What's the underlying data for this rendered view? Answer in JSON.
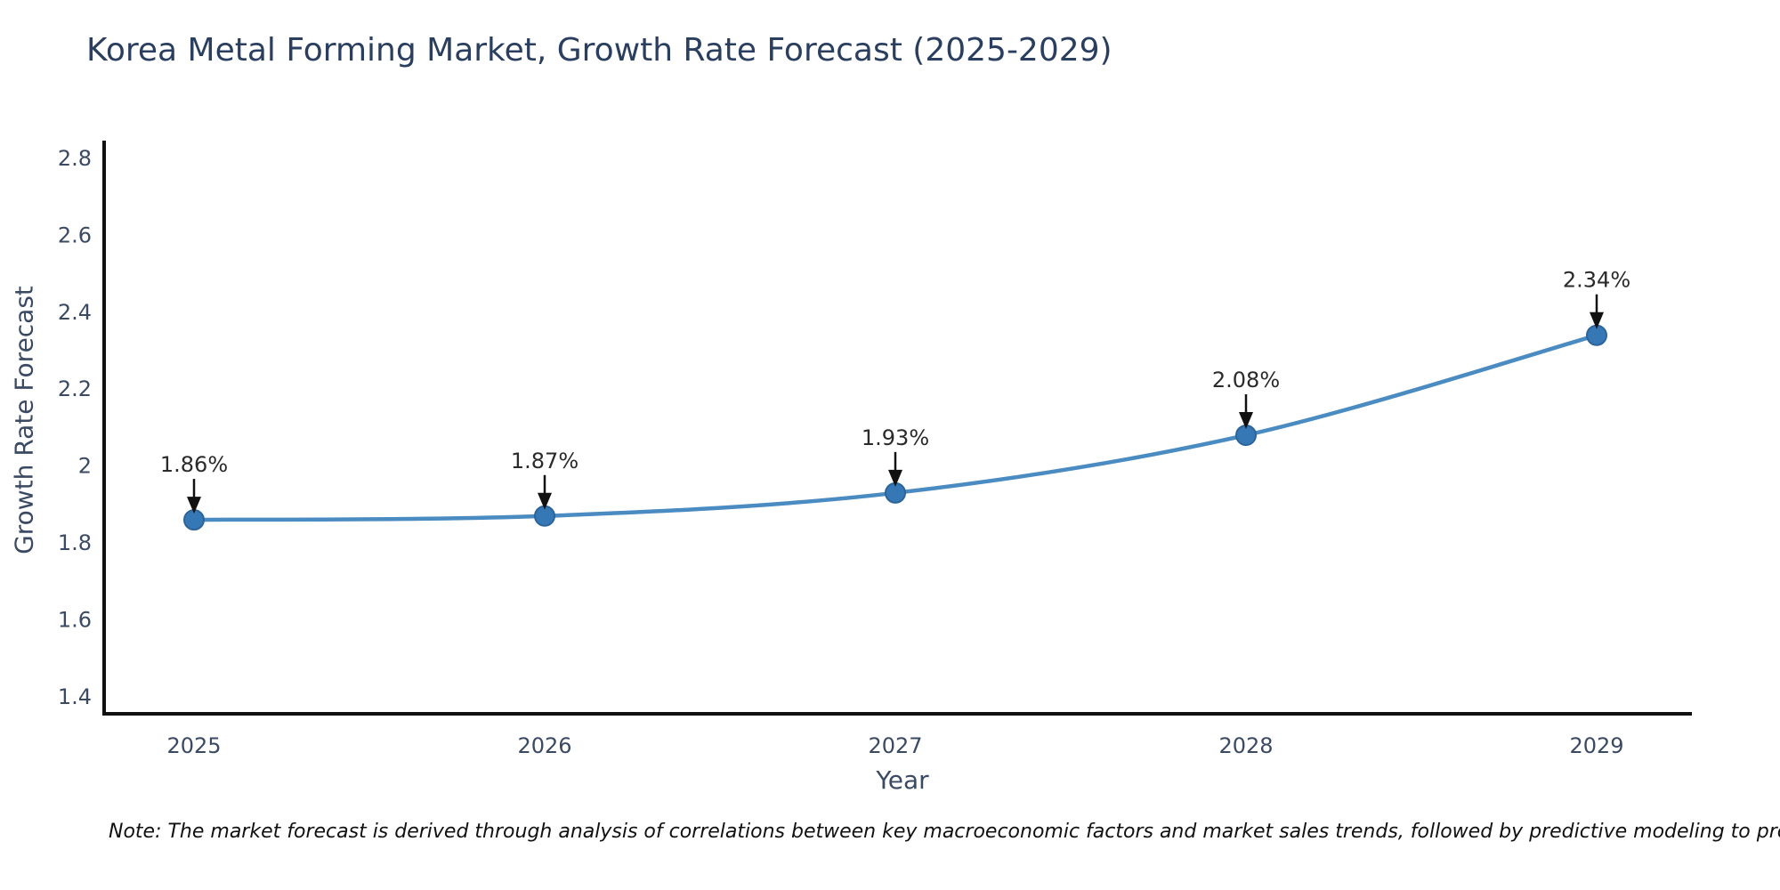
{
  "page": {
    "background": "#ffffff"
  },
  "chart_data": {
    "type": "line",
    "title": "Korea Metal Forming Market, Growth Rate Forecast (2025-2029)",
    "xlabel": "Year",
    "ylabel": "Growth Rate Forecast",
    "x": [
      "2025",
      "2026",
      "2027",
      "2028",
      "2029"
    ],
    "values": [
      1.86,
      1.87,
      1.93,
      2.08,
      2.34
    ],
    "point_labels": [
      "1.86%",
      "1.87%",
      "1.93%",
      "2.08%",
      "2.34%"
    ],
    "yticks": [
      "2.8",
      "2.6",
      "2.4",
      "2.2",
      "2",
      "1.8",
      "1.6",
      "1.4"
    ],
    "ytick_values": [
      2.8,
      2.6,
      2.4,
      2.2,
      2.0,
      1.8,
      1.6,
      1.4
    ],
    "ylim": [
      1.35,
      2.85
    ],
    "grid": false,
    "legend": "none",
    "curve": "spline",
    "colors": {
      "line": "#4a8bc2",
      "marker": "#3578b5",
      "marker_edge": "#2d649a",
      "axis_line": "#111111",
      "tick_label": "#3b4a63",
      "title": "#2a3f5f",
      "annotation_text": "#2a2a2a",
      "annotation_arrow": "#111111"
    }
  },
  "note": {
    "text": "Note: The market forecast is derived through analysis of correlations between key macroeconomic factors and market sales trends, followed by predictive modeling to project future sales"
  }
}
